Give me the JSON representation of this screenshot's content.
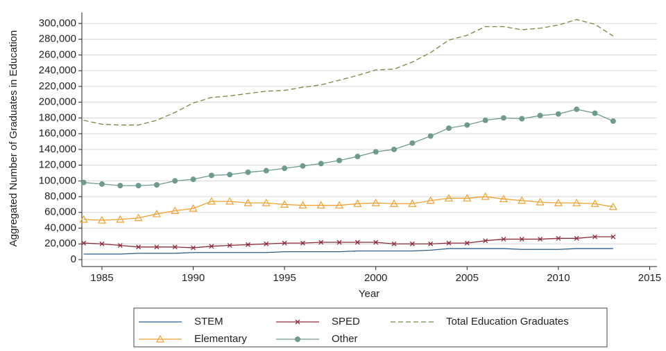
{
  "chart_data": {
    "type": "line",
    "x_label": "Year",
    "y_label": "Aggregated Number of Graduates in Education",
    "x": [
      1984,
      1985,
      1986,
      1987,
      1988,
      1989,
      1990,
      1991,
      1992,
      1993,
      1994,
      1995,
      1996,
      1997,
      1998,
      1999,
      2000,
      2001,
      2002,
      2003,
      2004,
      2005,
      2006,
      2007,
      2008,
      2009,
      2010,
      2011,
      2012,
      2013
    ],
    "xlim": [
      1983.9,
      2015.4
    ],
    "xticks": [
      1985,
      1990,
      1995,
      2000,
      2005,
      2010,
      2015
    ],
    "ylim": [
      -8800,
      314000
    ],
    "yticks": [
      0,
      {
        "value": 20000,
        "label": "20,000"
      },
      {
        "value": 40000,
        "label": "40,000"
      },
      {
        "value": 60000,
        "label": "60,000"
      },
      {
        "value": 80000,
        "label": "80,000"
      },
      {
        "value": 100000,
        "label": "100,000"
      },
      {
        "value": 120000,
        "label": "120,000"
      },
      {
        "value": 140000,
        "label": "140,000"
      },
      {
        "value": 160000,
        "label": "160,000"
      },
      {
        "value": 180000,
        "label": "180,000"
      },
      {
        "value": 200000,
        "label": "200,000"
      },
      {
        "value": 220000,
        "label": "220,000"
      },
      {
        "value": 240000,
        "label": "240,000"
      },
      {
        "value": 260000,
        "label": "260,000"
      },
      {
        "value": 280000,
        "label": "280,000"
      },
      {
        "value": 300000,
        "label": "300,000"
      }
    ],
    "grid": true,
    "legend": "bottom",
    "series": [
      {
        "name": "STEM",
        "color": "#2f5d8a",
        "marker": "none",
        "dash": false,
        "values": [
          7000,
          7000,
          7000,
          8000,
          8000,
          8000,
          9000,
          9000,
          9000,
          9000,
          9000,
          10000,
          10000,
          10000,
          10000,
          11000,
          11000,
          11000,
          11000,
          12000,
          14000,
          14000,
          14000,
          14000,
          13000,
          13000,
          13000,
          14000,
          14000,
          14000
        ]
      },
      {
        "name": "SPED",
        "color": "#8e2a3a",
        "marker": "x",
        "dash": false,
        "values": [
          21000,
          20000,
          18000,
          16000,
          16000,
          16000,
          15000,
          17000,
          18000,
          19000,
          20000,
          21000,
          21000,
          22000,
          22000,
          22000,
          22000,
          20000,
          20000,
          20000,
          21000,
          21000,
          24000,
          26000,
          26000,
          26000,
          27000,
          27000,
          29000,
          29000
        ]
      },
      {
        "name": "Total Education Graduates",
        "color": "#6f8a3e",
        "marker": "none",
        "dash": true,
        "values": [
          177000,
          172000,
          171000,
          171000,
          177000,
          187000,
          199000,
          206000,
          208000,
          211000,
          214000,
          215000,
          219000,
          222000,
          228000,
          234000,
          241000,
          242000,
          251000,
          263000,
          279000,
          285000,
          296000,
          296000,
          292000,
          294000,
          298000,
          305000,
          299000,
          284000
        ]
      },
      {
        "name": "Elementary",
        "color": "#f0a030",
        "marker": "triangle",
        "dash": false,
        "values": [
          51000,
          50000,
          51000,
          53000,
          58000,
          62000,
          65000,
          74000,
          74000,
          72000,
          72000,
          70000,
          69000,
          69000,
          69000,
          71000,
          72000,
          71000,
          71000,
          75000,
          78000,
          78000,
          80000,
          77000,
          75000,
          73000,
          72000,
          72000,
          71000,
          67000
        ]
      },
      {
        "name": "Other",
        "color": "#6f9a90",
        "marker": "circle",
        "dash": false,
        "values": [
          98000,
          96000,
          94000,
          94000,
          95000,
          100000,
          102000,
          107000,
          108000,
          111000,
          113000,
          116000,
          119000,
          122000,
          126000,
          131000,
          137000,
          140000,
          148000,
          157000,
          167000,
          171000,
          177000,
          180000,
          179000,
          183000,
          185000,
          191000,
          186000,
          176000
        ]
      }
    ]
  }
}
